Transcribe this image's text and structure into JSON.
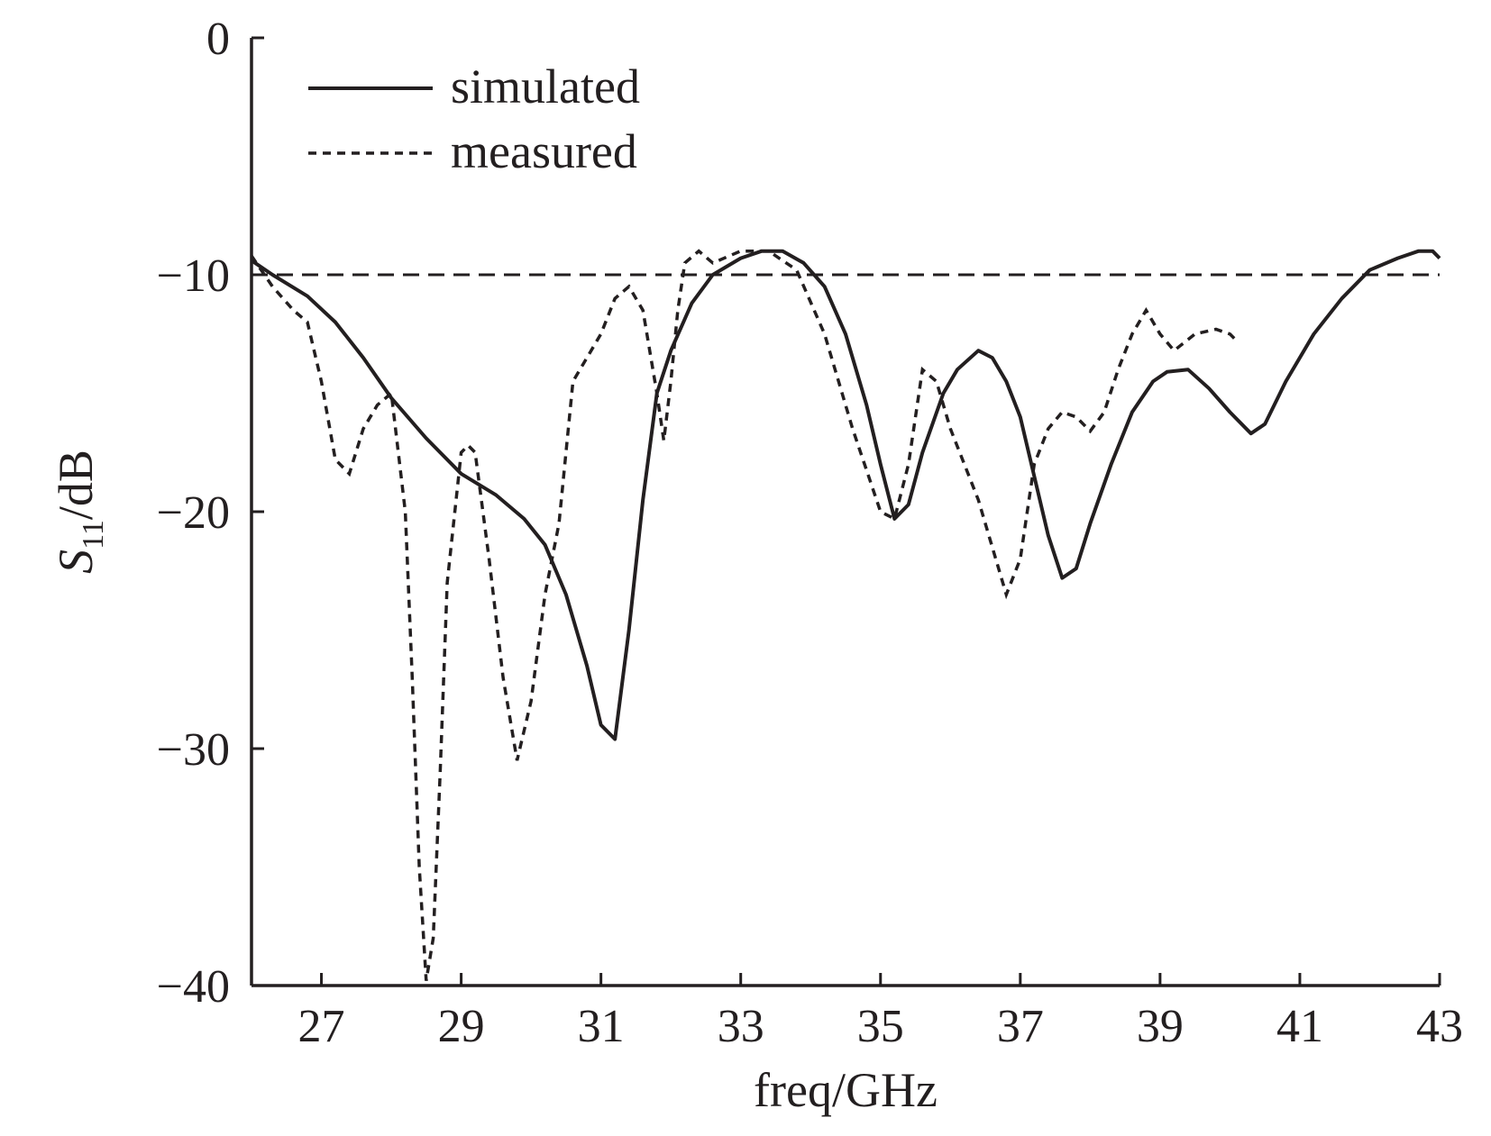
{
  "chart_data": {
    "type": "line",
    "xlabel": "freq/GHz",
    "ylabel_main": "S",
    "ylabel_sub": "11",
    "ylabel_unit": "/dB",
    "xlim": [
      26,
      43
    ],
    "ylim": [
      -40,
      0
    ],
    "xticks": [
      27,
      29,
      31,
      33,
      35,
      37,
      39,
      41,
      43
    ],
    "yticks": [
      0,
      -10,
      -20,
      -30,
      -40
    ],
    "ytick_labels": [
      "0",
      "−10",
      "−20",
      "−30",
      "−40"
    ],
    "grid": false,
    "legend_position": "top-left",
    "reference_line": {
      "y": -10,
      "style": "dashed"
    },
    "series": [
      {
        "name": "simulated",
        "style": "solid",
        "x": [
          26.0,
          26.3,
          26.8,
          27.2,
          27.6,
          28.0,
          28.5,
          29.0,
          29.5,
          29.9,
          30.2,
          30.5,
          30.8,
          31.0,
          31.2,
          31.4,
          31.6,
          31.8,
          32.0,
          32.3,
          32.6,
          33.0,
          33.3,
          33.6,
          33.9,
          34.2,
          34.5,
          34.8,
          35.0,
          35.2,
          35.4,
          35.6,
          35.9,
          36.1,
          36.4,
          36.6,
          36.8,
          37.0,
          37.2,
          37.4,
          37.6,
          37.8,
          38.0,
          38.3,
          38.6,
          38.9,
          39.1,
          39.4,
          39.7,
          40.0,
          40.3,
          40.5,
          40.8,
          41.2,
          41.6,
          42.0,
          42.4,
          42.7,
          42.9,
          43.0
        ],
        "y": [
          -9.4,
          -10.0,
          -10.9,
          -12.0,
          -13.5,
          -15.2,
          -16.9,
          -18.4,
          -19.3,
          -20.3,
          -21.4,
          -23.5,
          -26.5,
          -29.0,
          -29.6,
          -25.0,
          -19.5,
          -15.0,
          -13.2,
          -11.2,
          -10.0,
          -9.3,
          -9.0,
          -9.0,
          -9.5,
          -10.5,
          -12.5,
          -15.5,
          -18.0,
          -20.3,
          -19.7,
          -17.5,
          -15.0,
          -14.0,
          -13.2,
          -13.5,
          -14.5,
          -16.0,
          -18.5,
          -21.0,
          -22.8,
          -22.4,
          -20.5,
          -18.0,
          -15.8,
          -14.5,
          -14.1,
          -14.0,
          -14.8,
          -15.8,
          -16.7,
          -16.3,
          -14.5,
          -12.5,
          -11.0,
          -9.8,
          -9.3,
          -9.0,
          -9.0,
          -9.3
        ]
      },
      {
        "name": "measured",
        "style": "dotted",
        "x": [
          26.0,
          26.3,
          26.6,
          26.8,
          27.0,
          27.2,
          27.4,
          27.6,
          27.8,
          28.0,
          28.2,
          28.3,
          28.4,
          28.5,
          28.6,
          28.7,
          28.8,
          29.0,
          29.1,
          29.2,
          29.4,
          29.6,
          29.8,
          30.0,
          30.2,
          30.4,
          30.6,
          30.8,
          31.0,
          31.2,
          31.4,
          31.6,
          31.8,
          31.9,
          32.0,
          32.1,
          32.2,
          32.4,
          32.6,
          33.0,
          33.4,
          33.8,
          34.2,
          34.6,
          35.0,
          35.2,
          35.4,
          35.6,
          35.8,
          36.0,
          36.4,
          36.8,
          37.0,
          37.2,
          37.4,
          37.6,
          37.8,
          38.0,
          38.2,
          38.4,
          38.6,
          38.8,
          39.0,
          39.2,
          39.5,
          39.8,
          40.0,
          40.1
        ],
        "y": [
          -9.2,
          -10.5,
          -11.5,
          -12.0,
          -14.5,
          -17.8,
          -18.4,
          -16.5,
          -15.5,
          -15.0,
          -20.0,
          -27.0,
          -35.0,
          -39.8,
          -38.0,
          -31.0,
          -23.0,
          -17.5,
          -17.2,
          -17.5,
          -22.0,
          -27.0,
          -30.5,
          -28.0,
          -23.5,
          -20.5,
          -14.5,
          -13.5,
          -12.5,
          -11.0,
          -10.5,
          -11.5,
          -15.0,
          -17.0,
          -14.5,
          -11.5,
          -9.5,
          -9.0,
          -9.5,
          -9.0,
          -9.0,
          -9.8,
          -12.5,
          -16.5,
          -20.0,
          -20.3,
          -18.0,
          -14.0,
          -14.5,
          -16.5,
          -19.5,
          -23.5,
          -22.0,
          -18.0,
          -16.5,
          -15.8,
          -16.0,
          -16.6,
          -15.8,
          -14.0,
          -12.5,
          -11.5,
          -12.5,
          -13.2,
          -12.5,
          -12.3,
          -12.5,
          -12.8
        ]
      }
    ]
  }
}
